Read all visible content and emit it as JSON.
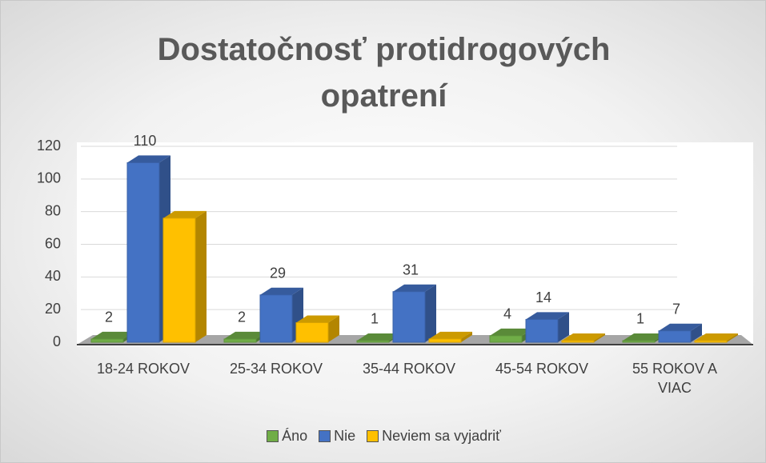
{
  "chart_data": {
    "type": "bar3d",
    "title": "Dostatočnosť protidrogových opatrení",
    "categories": [
      "18-24 ROKOV",
      "25-34 ROKOV",
      "35-44 ROKOV",
      "45-54 ROKOV",
      "55 ROKOV A VIAC"
    ],
    "series": [
      {
        "name": "Áno",
        "color": "#70ad47",
        "values": [
          2,
          2,
          1,
          4,
          1
        ],
        "data_labels": true
      },
      {
        "name": "Nie",
        "color": "#4472c4",
        "values": [
          110,
          29,
          31,
          14,
          7
        ],
        "data_labels": true
      },
      {
        "name": "Neviem sa vyjadriť",
        "color": "#ffc000",
        "values": [
          76,
          12,
          2,
          1,
          1
        ],
        "data_labels": false
      }
    ],
    "ylim": [
      0,
      120
    ],
    "yticks": [
      0,
      20,
      40,
      60,
      80,
      100,
      120
    ],
    "grid": true,
    "legend": "bottom"
  }
}
